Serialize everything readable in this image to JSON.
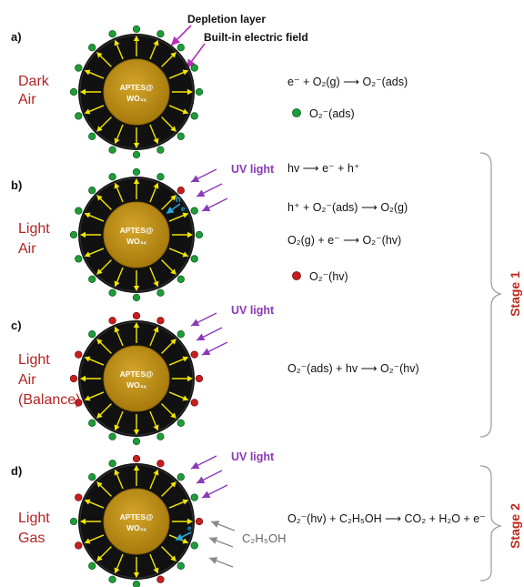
{
  "annotations": {
    "depletion_layer": "Depletion layer",
    "builtin_field": "Built-in electric field"
  },
  "core_label_line1": "APTES@",
  "core_label_line2": "WO₃ₓ",
  "panels": [
    {
      "id": "a",
      "label": "a)",
      "condition": [
        "Dark",
        "Air"
      ],
      "equations": [
        "e⁻ + O₂(g) ⟶ O₂⁻(ads)"
      ],
      "legend": "O₂⁻(ads)",
      "uv": ""
    },
    {
      "id": "b",
      "label": "b)",
      "condition": [
        "Light",
        "Air"
      ],
      "equations": [
        "hv ⟶ e⁻ + h⁺",
        "h⁺ + O₂⁻(ads) ⟶ O₂(g)",
        "O₂(g) + e⁻ ⟶ O₂⁻(hv)"
      ],
      "legend": "O₂⁻(hv)",
      "uv": "UV light"
    },
    {
      "id": "c",
      "label": "c)",
      "condition": [
        "Light",
        "Air",
        "(Balance)"
      ],
      "equations": [
        "O₂⁻(ads) + hv ⟶ O₂⁻(hv)"
      ],
      "legend": "",
      "uv": "UV light"
    },
    {
      "id": "d",
      "label": "d)",
      "condition": [
        "Light",
        "Gas"
      ],
      "equations": [
        "O₂⁻(hv) + C₂H₅OH ⟶ CO₂ + H₂O + e⁻"
      ],
      "legend": "",
      "uv": "UV light",
      "gas": "C₂H₅OH"
    }
  ],
  "stages": [
    "Stage 1",
    "Stage 2"
  ],
  "colors": {
    "condition_text": "#b32424",
    "uv_text": "#8a3ab9",
    "stage_text": "#c0281f",
    "core": "#b5860f",
    "shell": "#111111",
    "field_arrows": "#f2e600",
    "ads_dot": "#1f9b3a",
    "hv_dot": "#c81e1e",
    "uv_arrow": "#8a3ab9",
    "gas_arrow": "#8a8a8a",
    "electron_arrow": "#29a8e0"
  },
  "symbols": {
    "hole": "h",
    "electron": "e"
  }
}
